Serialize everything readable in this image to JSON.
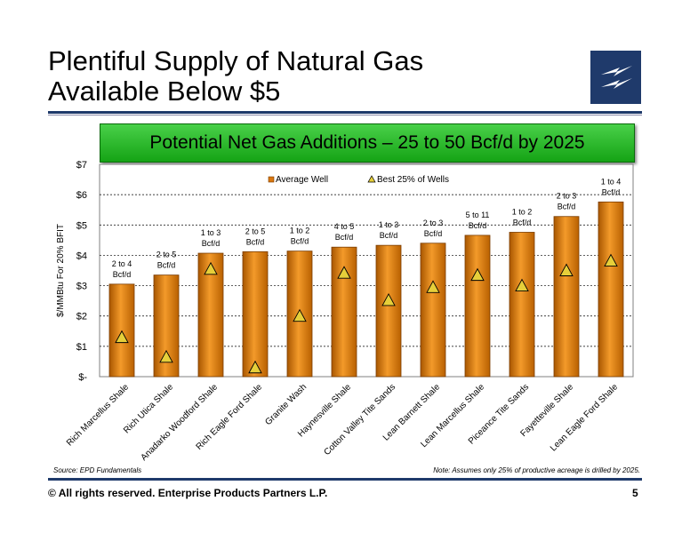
{
  "slide": {
    "title_line1": "Plentiful Supply of Natural Gas",
    "title_line2": "Available Below $5",
    "banner": "Potential Net Gas Additions – 25 to 50 Bcf/d by 2025",
    "source": "Source: EPD Fundamentals",
    "note": "Note: Assumes only 25% of productive acreage is drilled by 2025.",
    "footer": "©  All rights reserved. Enterprise Products Partners L.P.",
    "page_number": "5"
  },
  "colors": {
    "brand_navy": "#1f3a6b",
    "banner_green": "#22b022",
    "bar_orange": "#d9770f",
    "marker_yellow": "#e6cf3a"
  },
  "chart_data": {
    "type": "bar",
    "ylabel": "$/MMBtu For 20% BFIT",
    "ylim": [
      0,
      7
    ],
    "y_ticks": [
      0,
      1,
      2,
      3,
      4,
      5,
      6,
      7
    ],
    "y_tick_labels": [
      "$-",
      "$1",
      "$2",
      "$3",
      "$4",
      "$5",
      "$6",
      "$7"
    ],
    "grid": true,
    "legend_position": "top-center",
    "categories": [
      "Rich Marcellus Shale",
      "Rich Utica Shale",
      "Anadarko Woodford Shale",
      "Rich Eagle Ford Shale",
      "Granite Wash",
      "Haynesville Shale",
      "Cotton Valley Tite Sands",
      "Lean Barnett Shale",
      "Lean Marcellus Shale",
      "Piceance Tite Sands",
      "Fayetteville Shale",
      "Lean Eagle Ford Shale"
    ],
    "series": [
      {
        "name": "Average Well",
        "kind": "bar",
        "values": [
          3.05,
          3.35,
          4.07,
          4.12,
          4.14,
          4.27,
          4.33,
          4.4,
          4.66,
          4.76,
          5.28,
          5.76
        ]
      },
      {
        "name": "Best 25% of Wells",
        "kind": "triangle-marker",
        "values": [
          1.3,
          0.65,
          3.55,
          0.3,
          2.0,
          3.42,
          2.52,
          2.95,
          3.35,
          3.0,
          3.5,
          3.82
        ]
      }
    ],
    "bar_labels": [
      [
        "2 to 4",
        "Bcf/d"
      ],
      [
        "2 to 5",
        "Bcf/d"
      ],
      [
        "1 to 3",
        "Bcf/d"
      ],
      [
        "2 to 5",
        "Bcf/d"
      ],
      [
        "1 to 2",
        "Bcf/d"
      ],
      [
        "4 to 5",
        "Bcf/d"
      ],
      [
        "1 to 3",
        "Bcf/d"
      ],
      [
        "2 to 3",
        "Bcf/d"
      ],
      [
        "5 to 11",
        "Bcf/d"
      ],
      [
        "1 to 2",
        "Bcf/d"
      ],
      [
        "2 to 3",
        "Bcf/d"
      ],
      [
        "1 to 4",
        "Bcf/d"
      ]
    ]
  }
}
